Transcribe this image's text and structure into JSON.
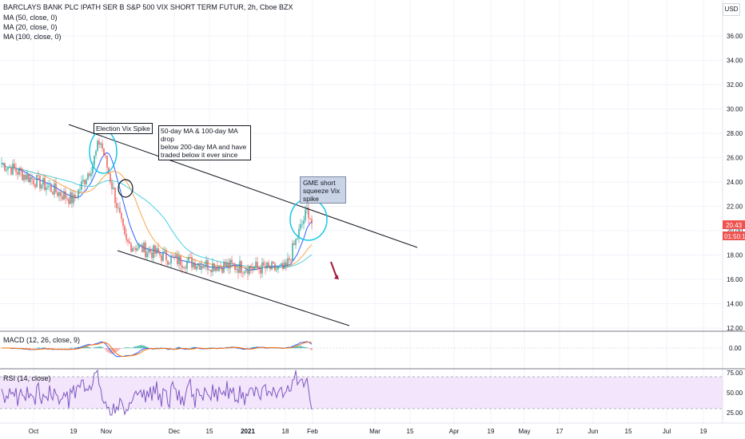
{
  "header": {
    "title": "BARCLAYS BANK PLC IPATH SER B S&P 500 VIX SHORT TERM FUTUR, 2h, Cboe BZX",
    "indicators": [
      "MA (50, close, 0)",
      "MA (20, close, 0)",
      "MA (100, close, 0)"
    ],
    "currency_button": "USD"
  },
  "price_tags": {
    "last": "20.43",
    "countdown": "01:50:14"
  },
  "macd": {
    "label": "MACD (12, 26, close, 9)",
    "ticks": [
      "0.00"
    ]
  },
  "rsi": {
    "label": "RSI (14, close)",
    "ticks": [
      "75.00",
      "50.00",
      "25.00"
    ]
  },
  "annotations": {
    "election": "Election Vix Spike",
    "ma_drop": [
      "50-day MA & 100-day MA drop",
      "below 200-day MA and have",
      "traded below it ever since"
    ],
    "gme": [
      "GME short",
      "squeeze Vix",
      "spike"
    ]
  },
  "colors": {
    "up": "#26a69a",
    "down": "#ef5350",
    "ma50": "#f7a74a",
    "ma20": "#2962ff",
    "ma100": "#4dd0e1",
    "macd": "#2962ff",
    "signal": "#ff6d00",
    "rsi": "#7e57c2",
    "rsi_band": "#f3e5fb",
    "circle": "#18c8e6",
    "arrow": "#a3163a"
  },
  "chart_data": {
    "type": "candlestick",
    "price_axis": {
      "ticks": [
        12.0,
        14.0,
        16.0,
        18.0,
        20.0,
        22.0,
        24.0,
        26.0,
        28.0,
        30.0,
        32.0,
        34.0,
        36.0
      ],
      "tick_labels": [
        "12.00",
        "14.00",
        "16.00",
        "18.00",
        "20.00",
        "22.00",
        "24.00",
        "26.00",
        "28.00",
        "30.00",
        "32.00",
        "34.00",
        "36.00"
      ]
    },
    "time_axis": [
      "Oct",
      "19",
      "Nov",
      "Dec",
      "15",
      "2021",
      "18",
      "Feb",
      "Mar",
      "15",
      "Apr",
      "19",
      "May",
      "17",
      "Jun",
      "15",
      "Jul",
      "19"
    ],
    "close_path": [
      [
        "Oct",
        25.6
      ],
      [
        "19",
        22.5
      ],
      [
        "Nov",
        25.5
      ],
      [
        "Nov",
        27.5
      ],
      [
        "Nov",
        23.0
      ],
      [
        "Nov",
        19.0
      ],
      [
        "Dec",
        17.6
      ],
      [
        "15",
        17.2
      ],
      [
        "2021",
        17.0
      ],
      [
        "18",
        16.8
      ],
      [
        "Feb",
        21.8
      ],
      [
        "Feb",
        20.4
      ]
    ],
    "last_price": 20.43,
    "series": [
      {
        "name": "MA (50, close, 0)",
        "color": "#f7a74a"
      },
      {
        "name": "MA (20, close, 0)",
        "color": "#2962ff"
      },
      {
        "name": "MA (100, close, 0)",
        "color": "#4dd0e1"
      }
    ]
  }
}
